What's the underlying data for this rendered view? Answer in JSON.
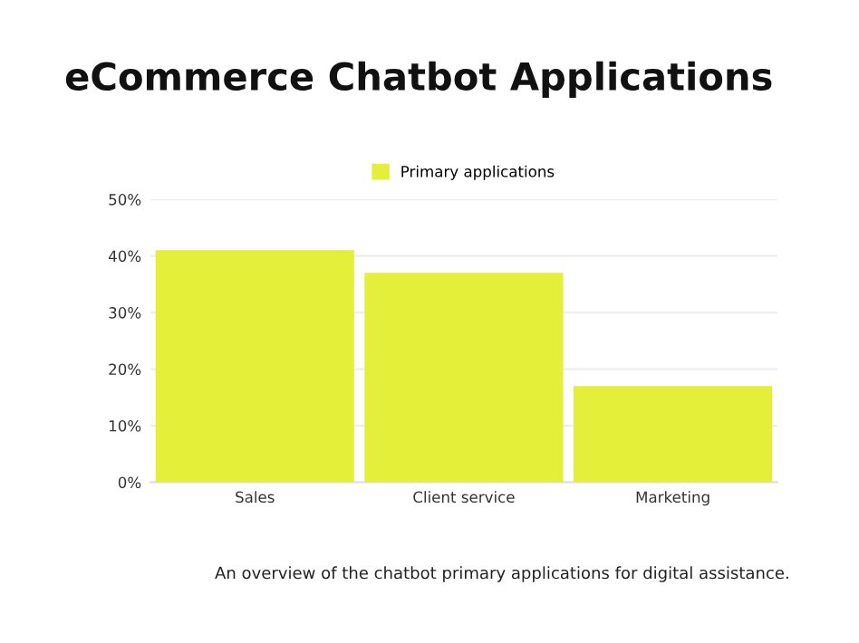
{
  "chart_data": {
    "type": "bar",
    "title": "eCommerce Chatbot Applications",
    "categories": [
      "Sales",
      "Client service",
      "Marketing"
    ],
    "series": [
      {
        "name": "Primary applications",
        "color": "#e3ef38",
        "values": [
          41,
          37,
          17
        ]
      }
    ],
    "ylim": [
      0,
      50
    ],
    "yticks": [
      {
        "value": 0,
        "label": "0%"
      },
      {
        "value": 10,
        "label": "10%"
      },
      {
        "value": 20,
        "label": "20%"
      },
      {
        "value": 30,
        "label": "30%"
      },
      {
        "value": 40,
        "label": "40%"
      },
      {
        "value": 50,
        "label": "50%"
      }
    ],
    "grid": "y",
    "legend": "top",
    "annotations": [
      "An overview of the chatbot primary applications for digital assistance."
    ]
  }
}
